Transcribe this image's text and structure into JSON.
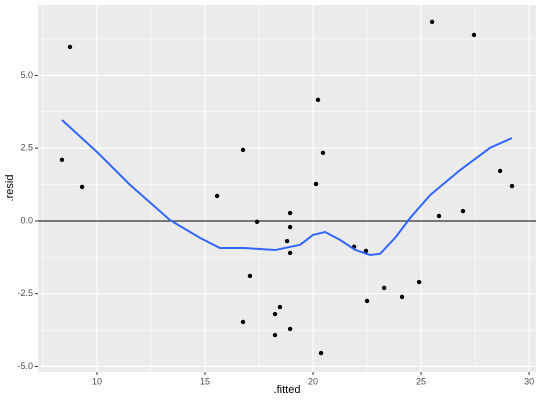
{
  "chart_data": {
    "type": "scatter",
    "xlabel": ".fitted",
    "ylabel": ".resid",
    "xlim": [
      7.27,
      30.32
    ],
    "ylim": [
      -5.19,
      7.42
    ],
    "xticks": [
      10,
      15,
      20,
      25,
      30
    ],
    "yticks": [
      {
        "value": -5,
        "label": "-5.0"
      },
      -2.5,
      {
        "value": 0,
        "label": "0.0"
      },
      2.5,
      {
        "value": 5,
        "label": "5.0"
      }
    ],
    "grid": true,
    "hline": 0,
    "series": [
      {
        "color": "#000000",
        "x": [
          8.38,
          8.75,
          9.31,
          15.56,
          16.76,
          17.41,
          17.08,
          16.76,
          18.24,
          18.47,
          18.24,
          18.94,
          18.94,
          18.8,
          18.94,
          18.94,
          20.14,
          20.23,
          20.46,
          20.37,
          21.9,
          22.45,
          22.5,
          23.29,
          24.12,
          24.91,
          25.51,
          25.83,
          26.94,
          27.45,
          28.66,
          29.21
        ],
        "values": [
          2.1,
          5.98,
          1.17,
          0.86,
          2.44,
          -0.03,
          -1.89,
          -3.47,
          -3.2,
          -2.96,
          -3.92,
          0.27,
          -0.21,
          -0.69,
          -1.1,
          -3.71,
          1.27,
          4.16,
          2.34,
          -4.54,
          -0.89,
          -1.03,
          -2.75,
          -2.3,
          -2.61,
          -2.1,
          6.84,
          0.17,
          0.34,
          6.39,
          1.72,
          1.2
        ]
      },
      {
        "type": "line",
        "color": "#3366ff",
        "x": [
          8.38,
          10,
          11.53,
          13.38,
          14.77,
          15.69,
          16.85,
          18.24,
          19.4,
          20.0,
          20.56,
          21.25,
          21.94,
          22.64,
          23.1,
          23.8,
          24.49,
          25.42,
          26.81,
          28.19,
          29.21
        ],
        "values": [
          3.47,
          2.37,
          1.24,
          0.03,
          -0.58,
          -0.93,
          -0.93,
          -1.0,
          -0.82,
          -0.48,
          -0.38,
          -0.65,
          -0.99,
          -1.17,
          -1.13,
          -0.58,
          0.1,
          0.89,
          1.75,
          2.51,
          2.85
        ]
      }
    ]
  }
}
